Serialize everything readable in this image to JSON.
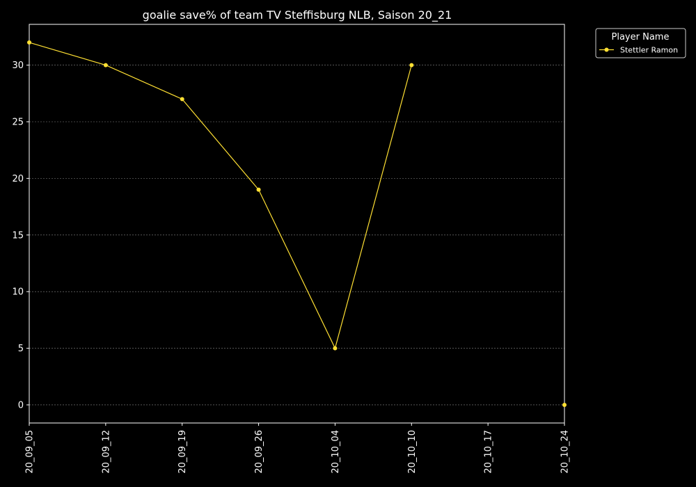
{
  "chart_data": {
    "type": "line",
    "title": "goalie save% of team TV Steffisburg NLB, Saison 20_21",
    "xlabel": "",
    "ylabel": "",
    "x_ticks": [
      "20_09_05",
      "20_09_12",
      "20_09_19",
      "20_09_26",
      "20_10_04",
      "20_10_10",
      "20_10_17",
      "20_10_24"
    ],
    "y_ticks": [
      0,
      5,
      10,
      15,
      20,
      25,
      30
    ],
    "ylim": [
      -1.6,
      33.6
    ],
    "grid": true,
    "legend": {
      "title": "Player Name",
      "position": "outside-top-right"
    },
    "series": [
      {
        "name": "Stettler Ramon",
        "color": "#ffe033",
        "points": [
          {
            "x": "20_09_05",
            "y": 32
          },
          {
            "x": "20_09_12",
            "y": 30
          },
          {
            "x": "20_09_19",
            "y": 27
          },
          {
            "x": "20_09_26",
            "y": 19
          },
          {
            "x": "20_10_04",
            "y": 5
          },
          {
            "x": "20_10_10",
            "y": 30
          },
          {
            "x": "20_10_24",
            "y": 0
          }
        ],
        "connected_until_index": 5
      }
    ],
    "colors": {
      "background": "#000000",
      "axes": "#ffffff",
      "grid": "#8a8a8a"
    }
  }
}
